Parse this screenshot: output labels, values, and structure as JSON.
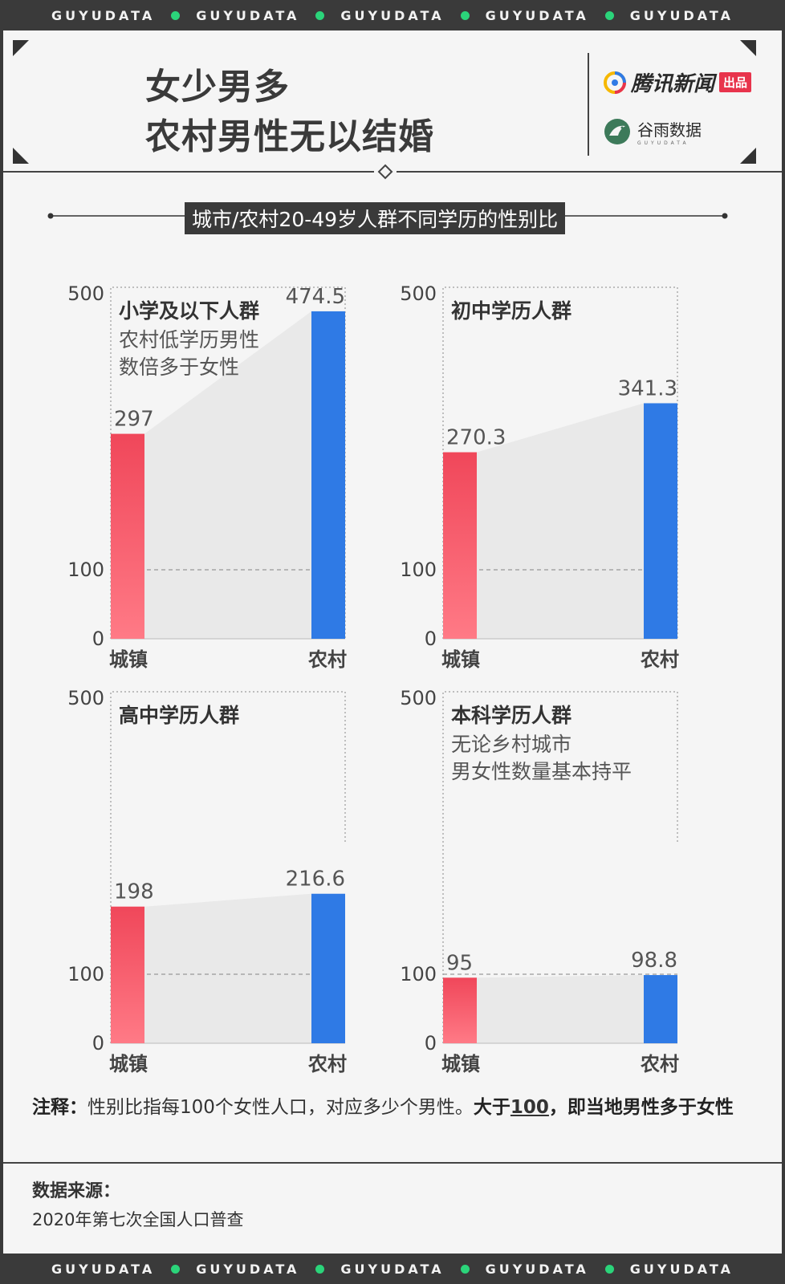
{
  "stripe": {
    "word": "GUYUDATA",
    "count": 5
  },
  "title": {
    "line1": "女少男多",
    "line2": "农村男性无以结婚"
  },
  "brands": {
    "tencent": "腾讯新闻",
    "tencent_badge": "出品",
    "guyu": "谷雨数据",
    "guyu_sub": "GUYUDATA"
  },
  "subtitle": "城市/农村20-49岁人群不同学历的性别比",
  "colors": {
    "urban": "#f0475a",
    "rural": "#2f7ae5",
    "dark": "#3a3a3a",
    "accent": "#2bd47a"
  },
  "chart_data": [
    {
      "type": "bar",
      "categories": [
        "城镇",
        "农村"
      ],
      "values": [
        297,
        474.5
      ],
      "value_labels": [
        "297",
        "474.5"
      ],
      "title": "小学及以下人群",
      "annotation": [
        "农村低学历男性",
        "数倍多于女性"
      ],
      "yticks": [
        "500",
        "100",
        "0"
      ],
      "ylim": [
        0,
        500
      ],
      "reference_line": 100
    },
    {
      "type": "bar",
      "categories": [
        "城镇",
        "农村"
      ],
      "values": [
        270.3,
        341.3
      ],
      "value_labels": [
        "270.3",
        "341.3"
      ],
      "title": "初中学历人群",
      "annotation": [],
      "yticks": [
        "500",
        "100",
        "0"
      ],
      "ylim": [
        0,
        500
      ],
      "reference_line": 100
    },
    {
      "type": "bar",
      "categories": [
        "城镇",
        "农村"
      ],
      "values": [
        198,
        216.6
      ],
      "value_labels": [
        "198",
        "216.6"
      ],
      "title": "高中学历人群",
      "annotation": [],
      "yticks": [
        "500",
        "100",
        "0"
      ],
      "ylim": [
        0,
        500
      ],
      "reference_line": 100
    },
    {
      "type": "bar",
      "categories": [
        "城镇",
        "农村"
      ],
      "values": [
        95,
        98.8
      ],
      "value_labels": [
        "95",
        "98.8"
      ],
      "title": "本科学历人群",
      "annotation": [
        "无论乡村城市",
        "男女性数量基本持平"
      ],
      "yticks": [
        "500",
        "100",
        "0"
      ],
      "ylim": [
        0,
        500
      ],
      "reference_line": 100
    }
  ],
  "note": {
    "prefix": "注释：",
    "text": "性别比指每100个女性人口，对应多少个男性。",
    "bold1": "大于",
    "bold_num": "100",
    "bold2": "，即当地男性多于女性"
  },
  "source": {
    "label": "数据来源：",
    "value": "2020年第七次全国人口普查"
  }
}
